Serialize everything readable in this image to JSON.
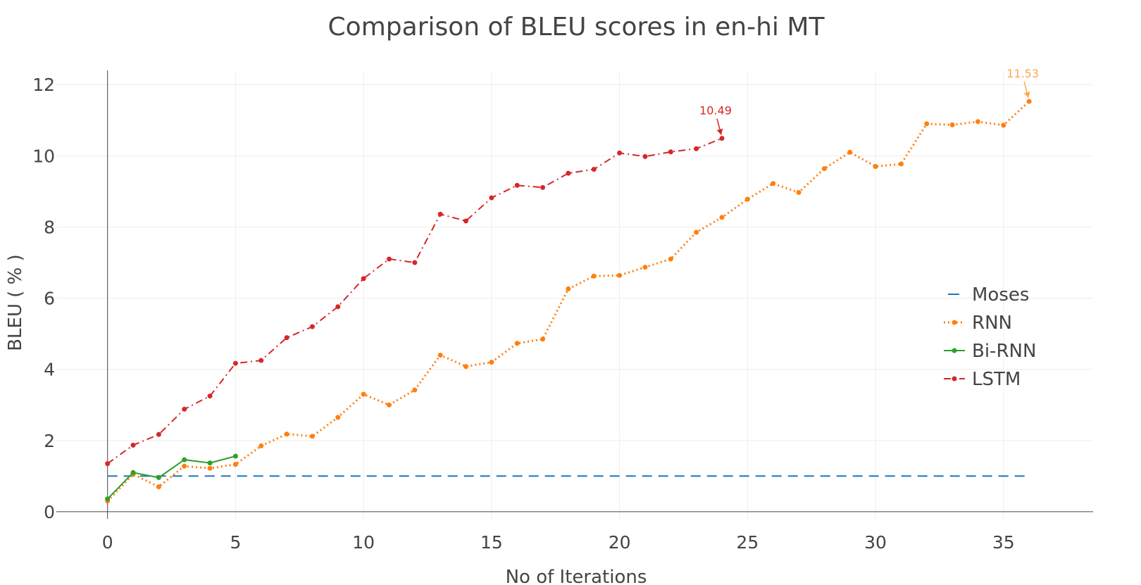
{
  "chart_data": {
    "type": "line",
    "title": "Comparison of BLEU scores in en-hi MT",
    "xlabel": "No of Iterations",
    "ylabel": "BLEU ( % )",
    "xlim": [
      -2,
      38.5
    ],
    "ylim": [
      -0.2,
      12.4
    ],
    "x_ticks": [
      0,
      5,
      10,
      15,
      20,
      25,
      30,
      35
    ],
    "y_ticks": [
      0,
      2,
      4,
      6,
      8,
      10,
      12
    ],
    "grid": true,
    "legend_position": "right",
    "series": [
      {
        "name": "Moses",
        "color": "#1f77b4",
        "dash": "dashed",
        "markers": false,
        "x": [
          0,
          36
        ],
        "y": [
          1.0,
          1.0
        ]
      },
      {
        "name": "RNN",
        "color": "#ff7f0e",
        "dash": "dotted",
        "markers": true,
        "x": [
          0,
          1,
          2,
          3,
          4,
          5,
          6,
          7,
          8,
          9,
          10,
          11,
          12,
          13,
          14,
          15,
          16,
          17,
          18,
          19,
          20,
          21,
          22,
          23,
          24,
          25,
          26,
          27,
          28,
          29,
          30,
          31,
          32,
          33,
          34,
          35,
          36
        ],
        "y": [
          0.3,
          1.05,
          0.7,
          1.28,
          1.22,
          1.33,
          1.85,
          2.18,
          2.12,
          2.65,
          3.3,
          3.0,
          3.42,
          4.4,
          4.08,
          4.2,
          4.73,
          4.85,
          6.26,
          6.62,
          6.64,
          6.87,
          7.1,
          7.85,
          8.27,
          8.78,
          9.22,
          8.97,
          9.64,
          10.1,
          9.7,
          9.77,
          10.9,
          10.87,
          10.96,
          10.86,
          11.53
        ]
      },
      {
        "name": "Bi-RNN",
        "color": "#2ca02c",
        "dash": "solid",
        "markers": true,
        "x": [
          0,
          1,
          2,
          3,
          4,
          5
        ],
        "y": [
          0.36,
          1.1,
          0.96,
          1.46,
          1.37,
          1.56
        ]
      },
      {
        "name": "LSTM",
        "color": "#d62728",
        "dash": "dashdot",
        "markers": true,
        "x": [
          0,
          1,
          2,
          3,
          4,
          5,
          6,
          7,
          8,
          9,
          10,
          11,
          12,
          13,
          14,
          15,
          16,
          17,
          18,
          19,
          20,
          21,
          22,
          23,
          24
        ],
        "y": [
          1.35,
          1.87,
          2.17,
          2.88,
          3.25,
          4.17,
          4.25,
          4.89,
          5.2,
          5.76,
          6.55,
          7.1,
          7.0,
          8.36,
          8.17,
          8.82,
          9.17,
          9.11,
          9.51,
          9.62,
          10.08,
          9.98,
          10.11,
          10.2,
          10.49
        ]
      }
    ],
    "annotations": [
      {
        "text": "10.49",
        "x": 24,
        "y": 10.49,
        "color": "#d62728"
      },
      {
        "text": "11.53",
        "x": 36,
        "y": 11.53,
        "color": "#ffa64d"
      }
    ]
  }
}
